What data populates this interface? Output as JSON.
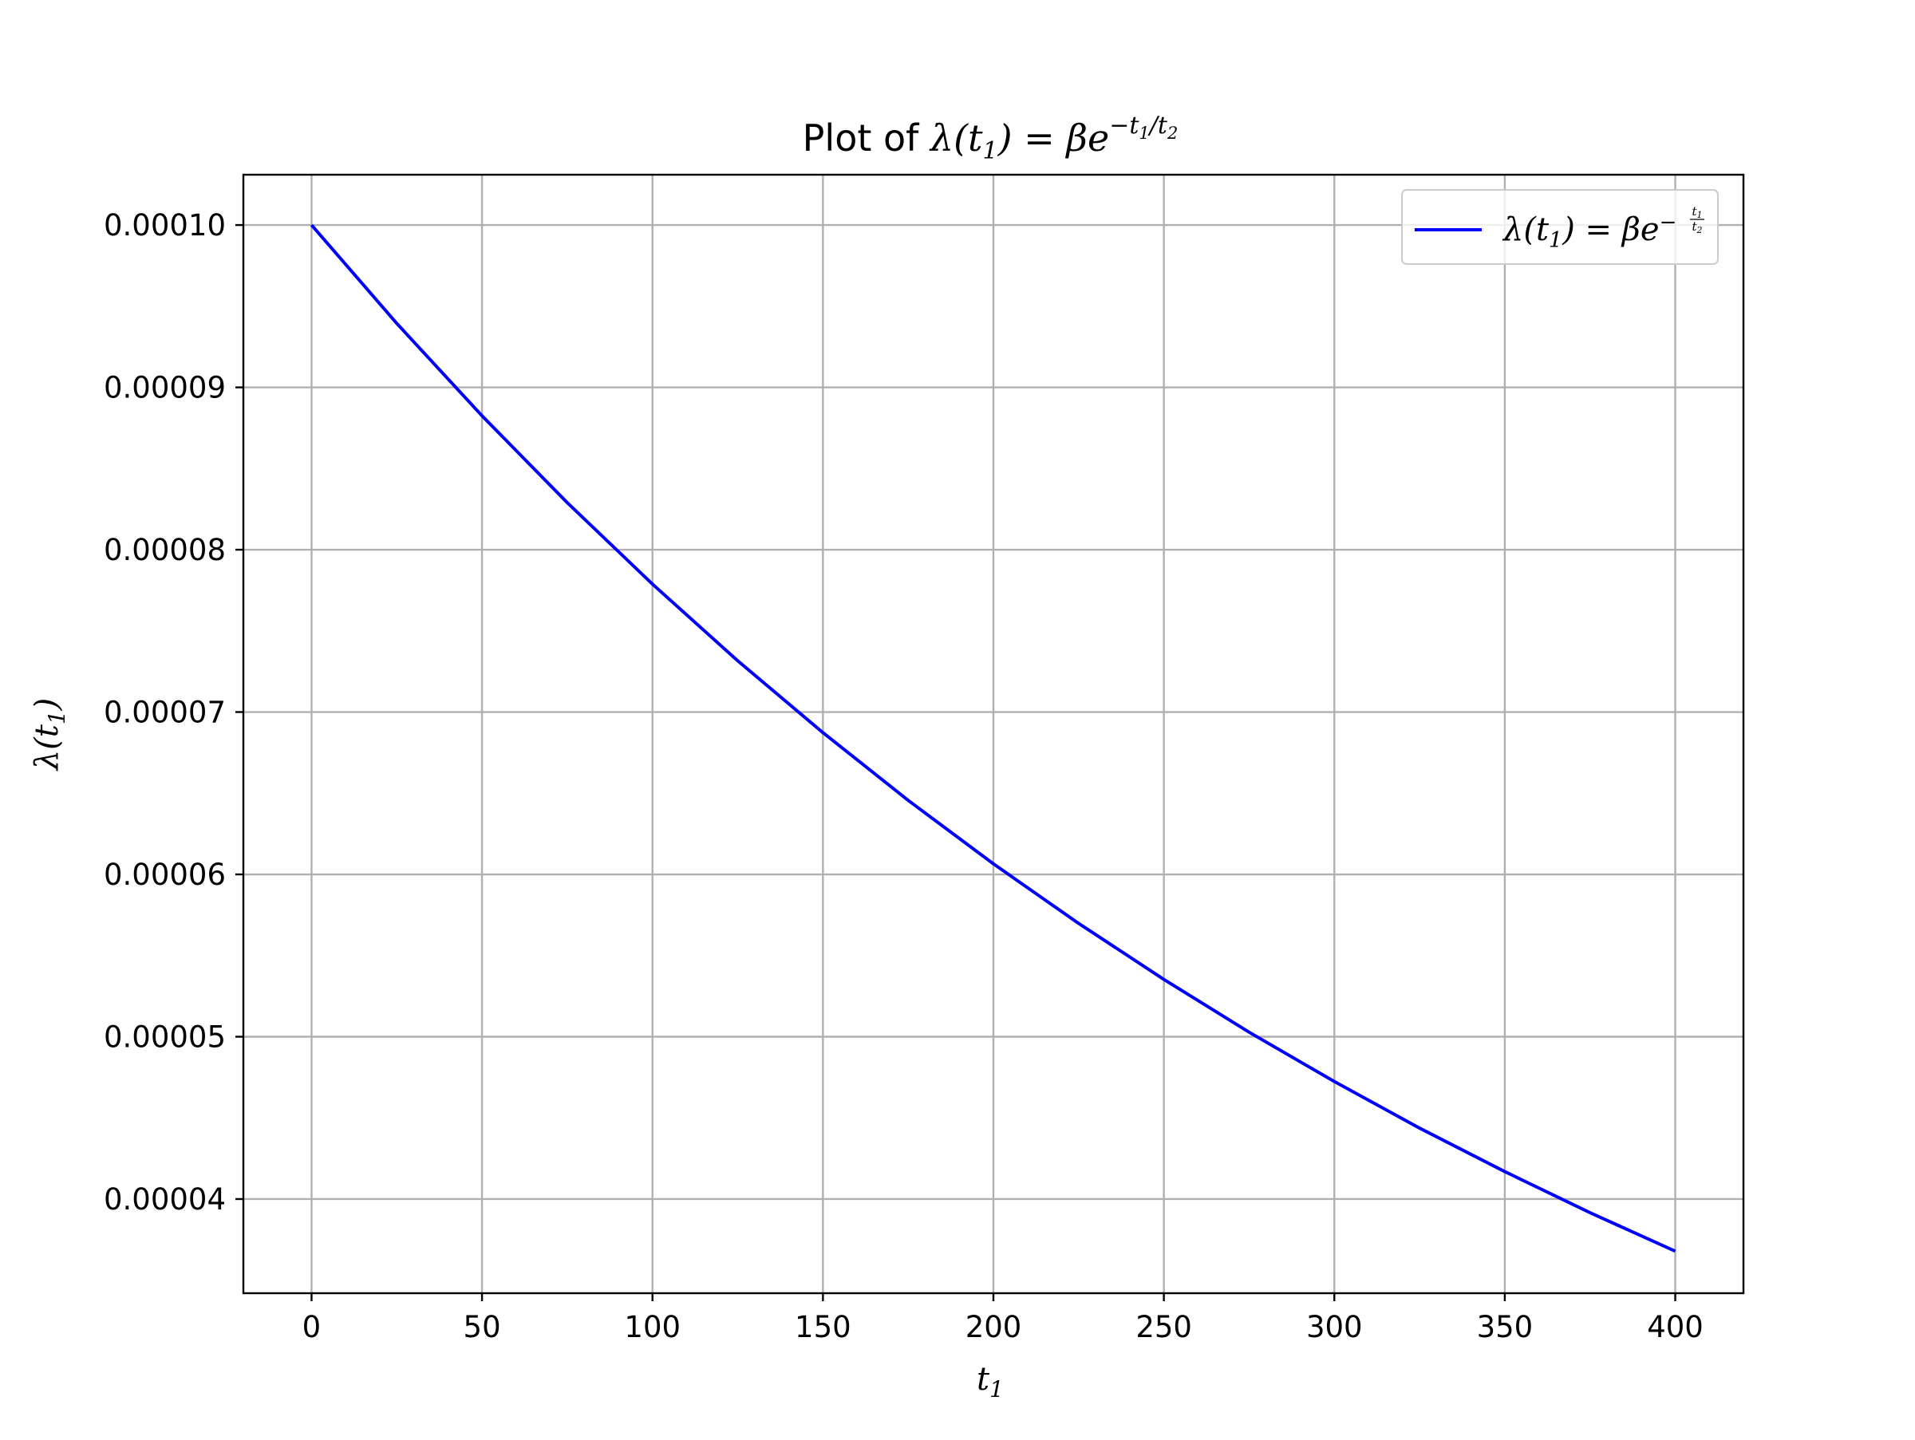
{
  "chart_data": {
    "type": "line",
    "title": {
      "prefix": "Plot of ",
      "math_main": "λ(t",
      "math_sub": "1",
      "math_rest": ") = βe",
      "math_sup": "−t",
      "math_sup_sub1": "1",
      "math_sup_mid": "/t",
      "math_sup_sub2": "2"
    },
    "xlabel": {
      "main": "t",
      "sub": "1"
    },
    "ylabel": {
      "main": "λ(t",
      "sub": "1",
      "rest": ")"
    },
    "xlim": [
      -20,
      420
    ],
    "ylim": [
      3.42e-05,
      0.0001031
    ],
    "x_ticks": [
      0,
      50,
      100,
      150,
      200,
      250,
      300,
      350,
      400
    ],
    "x_tick_labels": [
      "0",
      "50",
      "100",
      "150",
      "200",
      "250",
      "300",
      "350",
      "400"
    ],
    "y_ticks": [
      4e-05,
      5e-05,
      6e-05,
      7e-05,
      8e-05,
      9e-05,
      0.0001
    ],
    "y_tick_labels": [
      "0.00004",
      "0.00005",
      "0.00006",
      "0.00007",
      "0.00008",
      "0.00009",
      "0.00010"
    ],
    "grid": true,
    "legend_position": "top-right",
    "series": [
      {
        "legend": {
          "main": "λ(t",
          "sub": "1",
          "rest": ") = βe",
          "sup": "−",
          "frac_num_main": "t",
          "frac_num_sub": "1",
          "frac_den_main": "t",
          "frac_den_sub": "2"
        },
        "color": "#0000ff",
        "x": [
          0,
          25,
          50,
          75,
          100,
          125,
          150,
          175,
          200,
          225,
          250,
          275,
          300,
          325,
          350,
          375,
          400
        ],
        "y": [
          0.0001,
          9.394e-05,
          8.825e-05,
          8.29e-05,
          7.788e-05,
          7.316e-05,
          6.873e-05,
          6.456e-05,
          6.065e-05,
          5.698e-05,
          5.353e-05,
          5.028e-05,
          4.724e-05,
          4.437e-05,
          4.169e-05,
          3.916e-05,
          3.679e-05
        ]
      }
    ]
  }
}
